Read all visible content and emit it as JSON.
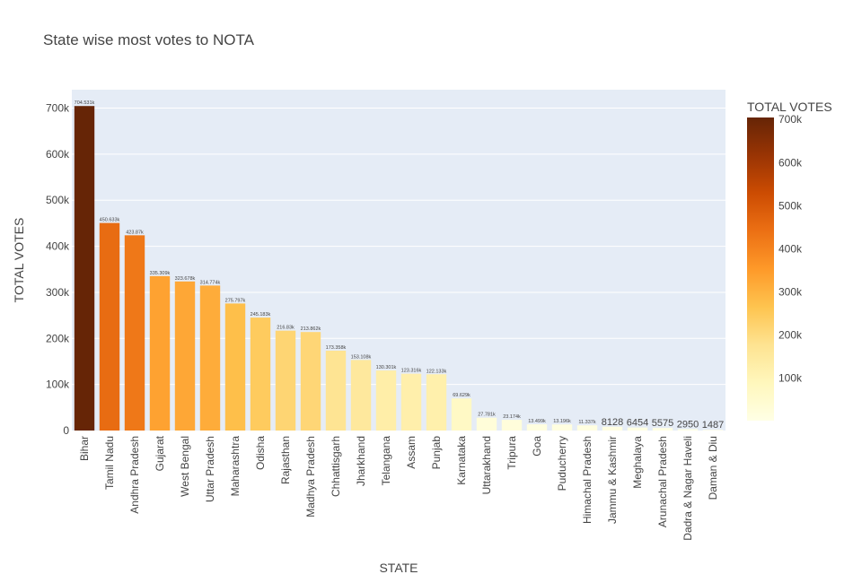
{
  "chart_data": {
    "type": "bar",
    "title": "State wise most votes to NOTA",
    "xlabel": "STATE",
    "ylabel": "TOTAL VOTES",
    "ylim": [
      0,
      740000
    ],
    "y_ticks": [
      0,
      100000,
      200000,
      300000,
      400000,
      500000,
      600000,
      700000
    ],
    "y_tick_labels": [
      "0",
      "100k",
      "200k",
      "300k",
      "400k",
      "500k",
      "600k",
      "700k"
    ],
    "categories": [
      "Bihar",
      "Tamil Nadu",
      "Andhra Pradesh",
      "Gujarat",
      "West Bengal",
      "Uttar Pradesh",
      "Maharashtra",
      "Odisha",
      "Rajasthan",
      "Madhya Pradesh",
      "Chhattisgarh",
      "Jharkhand",
      "Telangana",
      "Assam",
      "Punjab",
      "Karnataka",
      "Uttarakhand",
      "Tripura",
      "Goa",
      "Puducherry",
      "Himachal Pradesh",
      "Jammu & Kashmir",
      "Meghalaya",
      "Arunachal Pradesh",
      "Dadra & Nagar Haveli",
      "Daman & Diu"
    ],
    "values": [
      704531,
      450633,
      423870,
      335309,
      323678,
      314774,
      275797,
      245183,
      216830,
      213862,
      173358,
      153108,
      130301,
      123316,
      122133,
      69629,
      27781,
      23174,
      13499,
      13196,
      11337,
      8128,
      6454,
      5575,
      2950,
      1487
    ],
    "data_labels": [
      "704.531k",
      "450.633k",
      "423.87k",
      "335.309k",
      "323.678k",
      "314.774k",
      "275.797k",
      "245.183k",
      "216.83k",
      "213.862k",
      "173.358k",
      "153.108k",
      "130.301k",
      "123.316k",
      "122.133k",
      "69.629k",
      "27.781k",
      "23.174k",
      "13.499k",
      "13.196k",
      "11.337k",
      "8128",
      "6454",
      "5575",
      "2950",
      "1487"
    ],
    "colorscale": [
      "#ffffe5",
      "#fff7bc",
      "#fee391",
      "#fec44f",
      "#fe9929",
      "#ec7014",
      "#cc4c02",
      "#993404",
      "#662506"
    ],
    "colorbar": {
      "title": "TOTAL VOTES",
      "range": [
        1487,
        704531
      ],
      "ticks": [
        100000,
        200000,
        300000,
        400000,
        500000,
        600000,
        700000
      ],
      "tick_labels": [
        "100k",
        "200k",
        "300k",
        "400k",
        "500k",
        "600k",
        "700k"
      ]
    },
    "plot_background": "#e5ecf6",
    "grid": true
  }
}
